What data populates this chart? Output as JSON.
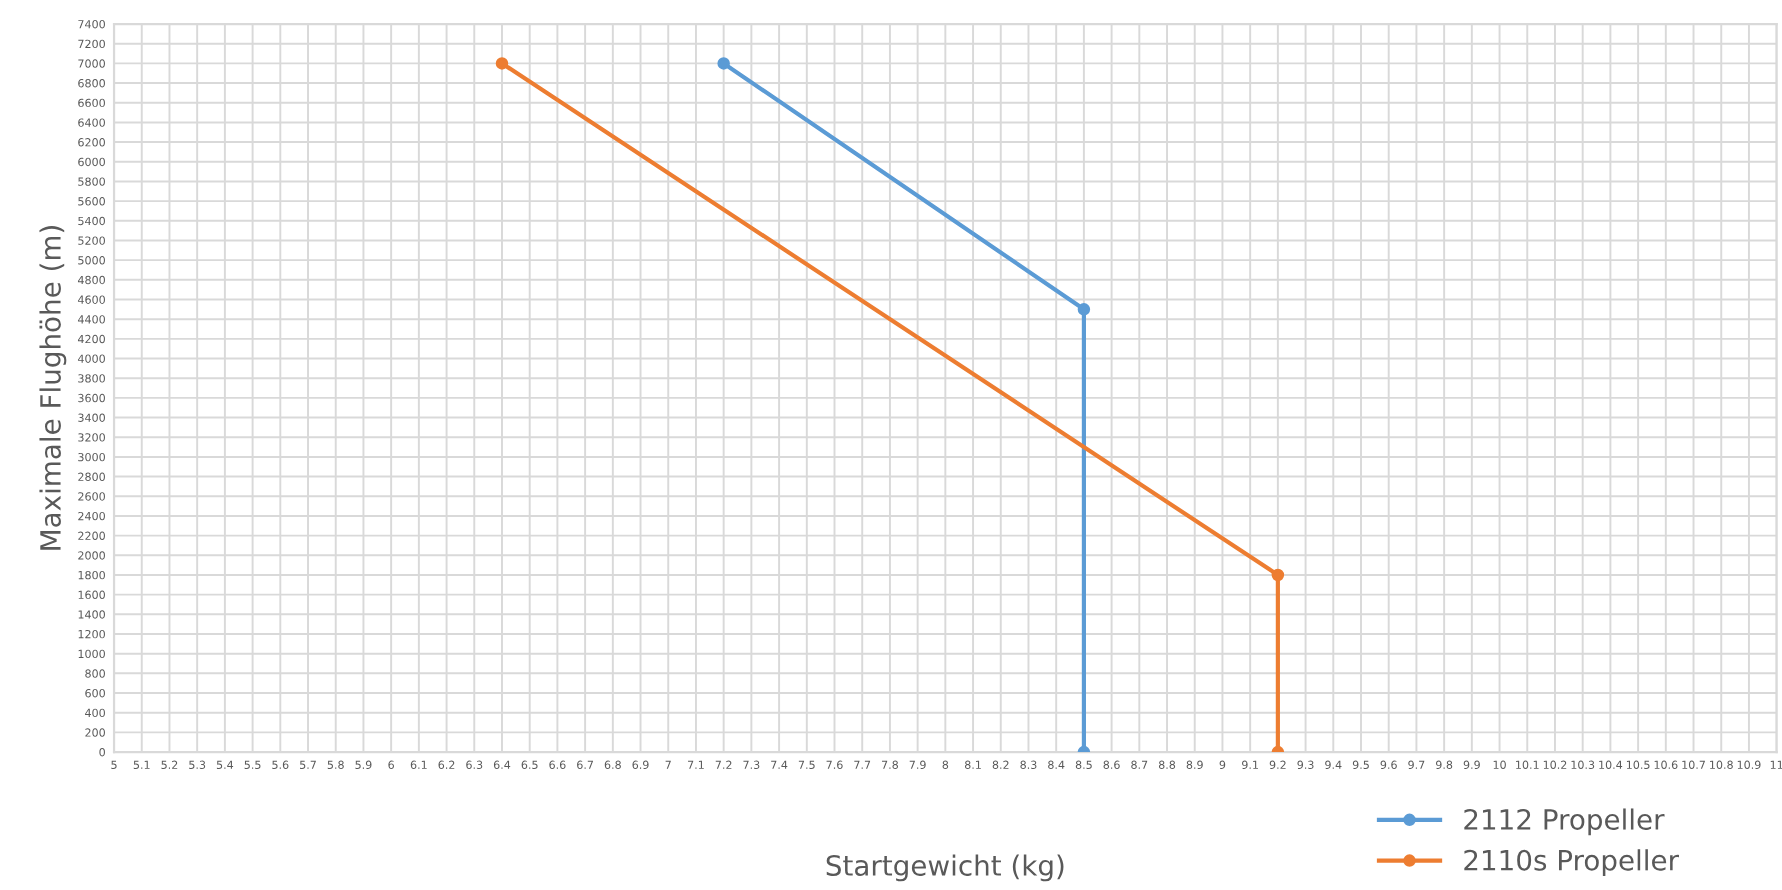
{
  "chart_data": {
    "type": "line",
    "xlabel": "Startgewicht (kg)",
    "ylabel": "Maximale Flughöhe (m)",
    "series": [
      {
        "name": "2112 Propeller",
        "color": "#5b9bd5",
        "x": [
          7.2,
          8.5,
          8.5
        ],
        "values": [
          7000,
          4500,
          0
        ]
      },
      {
        "name": "2110s Propeller",
        "color": "#ed7d31",
        "x": [
          6.4,
          9.2,
          9.2
        ],
        "values": [
          7000,
          1800,
          0
        ]
      }
    ],
    "xlim": [
      5,
      11
    ],
    "ylim": [
      0,
      7400
    ],
    "xticks": [
      5,
      5.1,
      5.2,
      5.3,
      5.4,
      5.5,
      5.6,
      5.7,
      5.8,
      5.9,
      6,
      6.1,
      6.2,
      6.3,
      6.4,
      6.5,
      6.6,
      6.7,
      6.8,
      6.9,
      7,
      7.1,
      7.2,
      7.3,
      7.4,
      7.5,
      7.6,
      7.7,
      7.8,
      7.9,
      8,
      8.1,
      8.2,
      8.3,
      8.4,
      8.5,
      8.6,
      8.7,
      8.8,
      8.9,
      9,
      9.1,
      9.2,
      9.3,
      9.4,
      9.5,
      9.6,
      9.7,
      9.8,
      9.9,
      10,
      10.1,
      10.2,
      10.3,
      10.4,
      10.5,
      10.6,
      10.7,
      10.8,
      10.9,
      11
    ],
    "yticks": [
      0,
      200,
      400,
      600,
      800,
      1000,
      1200,
      1400,
      1600,
      1800,
      2000,
      2200,
      2400,
      2600,
      2800,
      3000,
      3200,
      3400,
      3600,
      3800,
      4000,
      4200,
      4400,
      4600,
      4800,
      5000,
      5200,
      5400,
      5600,
      5800,
      6000,
      6200,
      6400,
      6600,
      6800,
      7000,
      7200,
      7400
    ],
    "grid": true,
    "legend": "bottom right",
    "marker": "circle",
    "line_style": "solid"
  }
}
